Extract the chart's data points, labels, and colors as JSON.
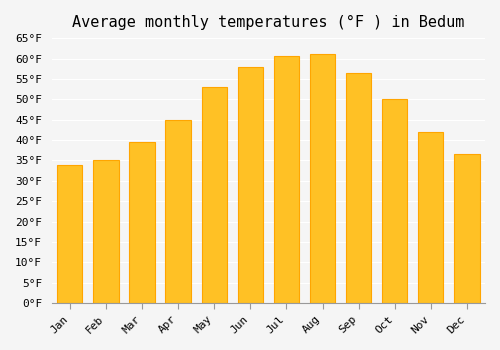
{
  "title": "Average monthly temperatures (°F ) in Bedum",
  "months": [
    "Jan",
    "Feb",
    "Mar",
    "Apr",
    "May",
    "Jun",
    "Jul",
    "Aug",
    "Sep",
    "Oct",
    "Nov",
    "Dec"
  ],
  "values": [
    34,
    35,
    39.5,
    45,
    53,
    58,
    60.5,
    61,
    56.5,
    50,
    42,
    36.5
  ],
  "bar_color_face": "#FFC125",
  "bar_color_edge": "#FFA500",
  "background_color": "#F5F5F5",
  "ylim": [
    0,
    65
  ],
  "yticks": [
    0,
    5,
    10,
    15,
    20,
    25,
    30,
    35,
    40,
    45,
    50,
    55,
    60,
    65
  ],
  "title_fontsize": 11,
  "tick_fontsize": 8,
  "grid_color": "#FFFFFF",
  "font_family": "monospace"
}
